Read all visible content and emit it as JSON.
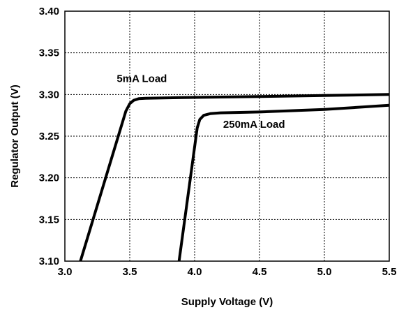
{
  "chart_data": {
    "type": "line",
    "title": "",
    "xlabel": "Supply Voltage (V)",
    "ylabel": "Regulator Output (V)",
    "xlim": [
      3.0,
      5.5
    ],
    "ylim": [
      3.1,
      3.4
    ],
    "xticks": [
      3.0,
      3.5,
      4.0,
      4.5,
      5.0,
      5.5
    ],
    "xtick_labels": [
      "3.0",
      "3.5",
      "4.0",
      "4.5",
      "5.0",
      "5.5"
    ],
    "yticks": [
      3.1,
      3.15,
      3.2,
      3.25,
      3.3,
      3.35,
      3.4
    ],
    "ytick_labels": [
      "3.10",
      "3.15",
      "3.20",
      "3.25",
      "3.30",
      "3.35",
      "3.40"
    ],
    "grid": true,
    "series": [
      {
        "name": "5mA Load",
        "x": [
          3.12,
          3.47,
          3.5,
          3.53,
          3.57,
          3.62,
          4.0,
          4.5,
          5.0,
          5.5
        ],
        "y": [
          3.1,
          3.28,
          3.289,
          3.293,
          3.295,
          3.2955,
          3.2965,
          3.2975,
          3.2988,
          3.3
        ]
      },
      {
        "name": "250mA Load",
        "x": [
          3.88,
          4.02,
          4.04,
          4.07,
          4.12,
          4.2,
          4.5,
          5.0,
          5.5
        ],
        "y": [
          3.1,
          3.26,
          3.27,
          3.275,
          3.277,
          3.278,
          3.279,
          3.282,
          3.287
        ]
      }
    ],
    "annotations": [
      {
        "text": "5mA Load",
        "series": 0,
        "x": 3.4,
        "y": 3.315
      },
      {
        "text": "250mA Load",
        "series": 1,
        "x": 4.22,
        "y": 3.26
      }
    ]
  }
}
